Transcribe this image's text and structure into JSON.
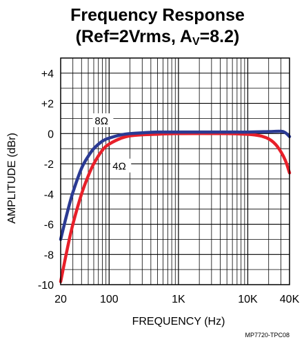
{
  "chart_data": {
    "type": "line",
    "title_line1": "Frequency Response",
    "title_line2_prefix": "(Ref=2Vrms, A",
    "title_line2_sub": "V",
    "title_line2_suffix": "=8.2)",
    "xlabel": "FREQUENCY (Hz)",
    "ylabel": "AMPLITUDE (dBr)",
    "x_scale": "log",
    "xlim": [
      20,
      40000
    ],
    "ylim": [
      -10,
      5
    ],
    "x_ticks": [
      {
        "value": 20,
        "label": "20"
      },
      {
        "value": 100,
        "label": "100"
      },
      {
        "value": 1000,
        "label": "1K"
      },
      {
        "value": 10000,
        "label": "10K"
      },
      {
        "value": 40000,
        "label": "40K"
      }
    ],
    "y_ticks": [
      {
        "value": 4,
        "label": "+4"
      },
      {
        "value": 2,
        "label": "+2"
      },
      {
        "value": 0,
        "label": "0"
      },
      {
        "value": -2,
        "label": "-2"
      },
      {
        "value": -4,
        "label": "-4"
      },
      {
        "value": -6,
        "label": "-6"
      },
      {
        "value": -8,
        "label": "-8"
      },
      {
        "value": -10,
        "label": "-10"
      }
    ],
    "grid": true,
    "series": [
      {
        "name": "8Ω",
        "color": "#2b3a93",
        "x": [
          20,
          25,
          30,
          40,
          50,
          60,
          80,
          100,
          150,
          200,
          300,
          500,
          1000,
          5000,
          10000,
          20000,
          30000,
          35000,
          40000
        ],
        "y": [
          -7.0,
          -5.2,
          -3.9,
          -2.3,
          -1.5,
          -1.0,
          -0.5,
          -0.3,
          -0.08,
          0.0,
          0.05,
          0.1,
          0.1,
          0.1,
          0.1,
          0.13,
          0.15,
          0.05,
          -0.2
        ]
      },
      {
        "name": "4Ω",
        "color": "#e8202a",
        "x": [
          20,
          25,
          30,
          40,
          50,
          60,
          80,
          100,
          150,
          200,
          300,
          500,
          1000,
          5000,
          10000,
          15000,
          20000,
          25000,
          30000,
          35000,
          40000
        ],
        "y": [
          -9.8,
          -7.6,
          -6.0,
          -4.0,
          -2.8,
          -2.0,
          -1.1,
          -0.7,
          -0.3,
          -0.15,
          -0.08,
          -0.04,
          0.0,
          0.0,
          -0.05,
          -0.15,
          -0.35,
          -0.7,
          -1.2,
          -1.8,
          -2.6
        ]
      }
    ],
    "annotations": [
      {
        "text": "8Ω",
        "series": "8Ω"
      },
      {
        "text": "4Ω",
        "series": "4Ω"
      }
    ],
    "footnote": "MP7720-TPC08"
  }
}
